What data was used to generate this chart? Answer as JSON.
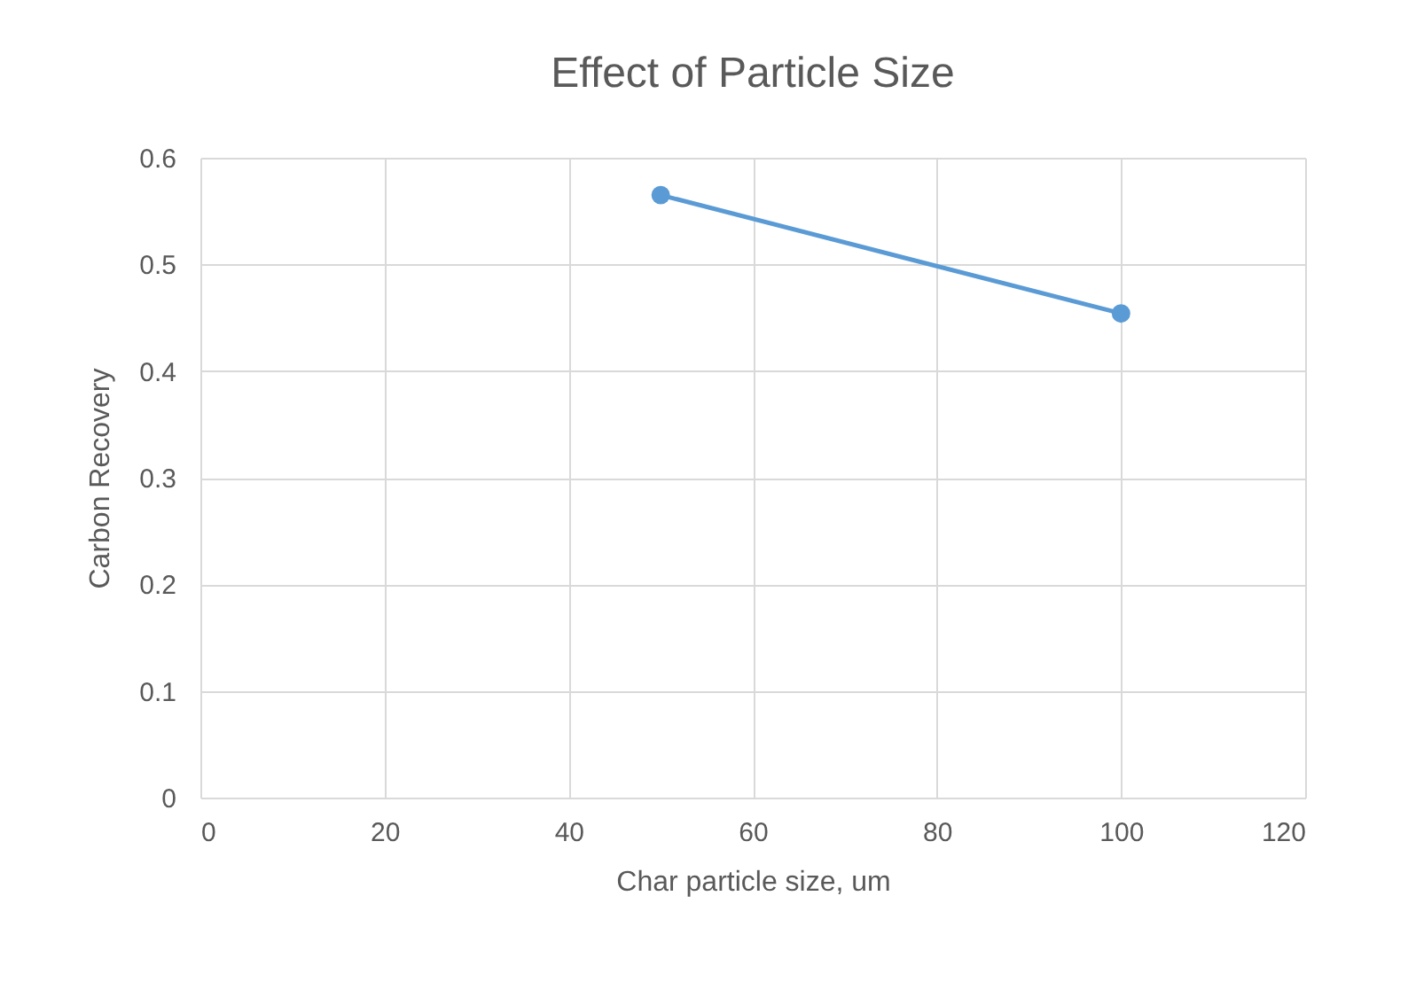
{
  "chart_data": {
    "type": "line",
    "title": "Effect of Particle Size",
    "xlabel": "Char particle size, um",
    "ylabel": "Carbon Recovery",
    "x": [
      50,
      100
    ],
    "series": [
      {
        "color": "#5b9bd5",
        "values": [
          0.565,
          0.454
        ]
      }
    ],
    "xlim": [
      0,
      120
    ],
    "xticks": [
      0,
      20,
      40,
      60,
      80,
      100,
      120
    ],
    "ylim": [
      0,
      0.6
    ],
    "yticks": [
      0,
      0.1,
      0.2,
      0.3,
      0.4,
      0.5,
      0.6
    ],
    "grid": true,
    "marker": "circle",
    "line_style": "solid"
  }
}
